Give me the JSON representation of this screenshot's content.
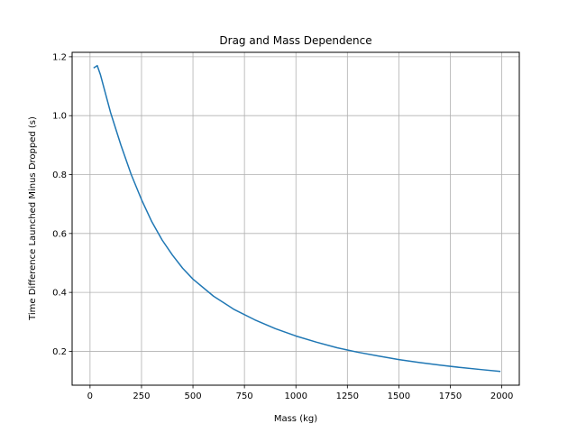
{
  "chart_data": {
    "type": "line",
    "title": "Drag and Mass Dependence",
    "xlabel": "Mass (kg)",
    "ylabel": "Time Difference Launched Minus Dropped (s)",
    "xlim": [
      -87,
      2085
    ],
    "ylim": [
      0.085,
      1.215
    ],
    "xticks": [
      0,
      250,
      500,
      750,
      1000,
      1250,
      1500,
      1750,
      2000
    ],
    "yticks": [
      0.2,
      0.4,
      0.6,
      0.8,
      1.0,
      1.2
    ],
    "xtick_labels": [
      "0",
      "250",
      "500",
      "750",
      "1000",
      "1250",
      "1500",
      "1750",
      "2000"
    ],
    "ytick_labels": [
      "0.2",
      "0.4",
      "0.6",
      "0.8",
      "1.0",
      "1.2"
    ],
    "grid": true,
    "series": [
      {
        "color": "#1f77b4",
        "x": [
          20,
          35,
          50,
          75,
          100,
          150,
          200,
          250,
          300,
          350,
          400,
          450,
          500,
          600,
          700,
          800,
          900,
          1000,
          1100,
          1200,
          1300,
          1400,
          1500,
          1600,
          1700,
          1800,
          1900,
          1990
        ],
        "y": [
          1.163,
          1.17,
          1.14,
          1.075,
          1.01,
          0.9,
          0.8,
          0.715,
          0.64,
          0.578,
          0.527,
          0.482,
          0.445,
          0.387,
          0.342,
          0.307,
          0.277,
          0.252,
          0.231,
          0.212,
          0.197,
          0.184,
          0.172,
          0.162,
          0.153,
          0.145,
          0.138,
          0.132
        ]
      }
    ]
  }
}
